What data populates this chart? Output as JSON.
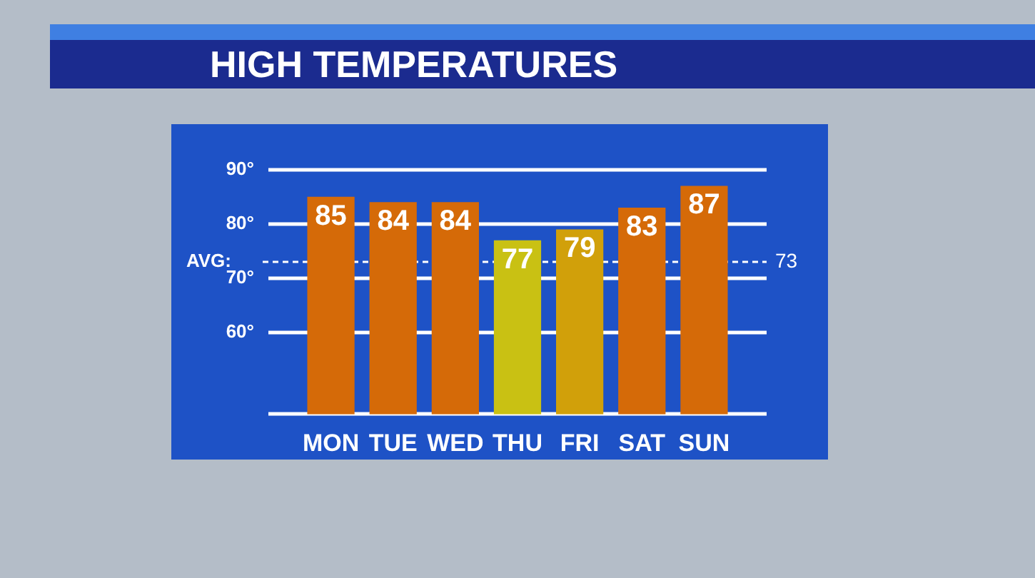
{
  "chart_data": {
    "type": "bar",
    "title": "HIGH TEMPERATURES",
    "categories": [
      "MON",
      "TUE",
      "WED",
      "THU",
      "FRI",
      "SAT",
      "SUN"
    ],
    "values": [
      85,
      84,
      84,
      77,
      79,
      83,
      87
    ],
    "colors": [
      "#d56a08",
      "#d56a08",
      "#d56a08",
      "#c9c113",
      "#d1a00a",
      "#d56a08",
      "#d56a08"
    ],
    "ylim": [
      45,
      90
    ],
    "yticks": [
      {
        "value": 60,
        "label": "60°"
      },
      {
        "value": 70,
        "label": "70°"
      },
      {
        "value": 80,
        "label": "80°"
      },
      {
        "value": 90,
        "label": "90°"
      }
    ],
    "grid": "y",
    "data_labels": true,
    "ref_lines": [
      {
        "axis": "y",
        "value": 73,
        "label": "AVG:",
        "line_style": "dashed",
        "color": "#ffffff"
      }
    ],
    "annotations": [
      "73"
    ]
  }
}
